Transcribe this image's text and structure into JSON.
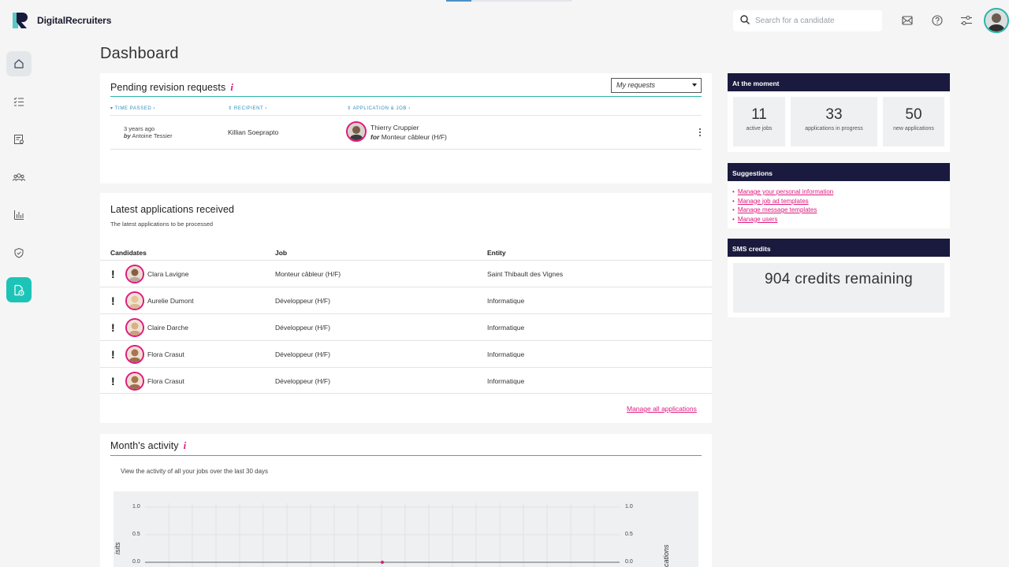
{
  "app": {
    "name": "DigitalRecruiters"
  },
  "search": {
    "placeholder": "Search for a candidate"
  },
  "page": {
    "title": "Dashboard"
  },
  "pending": {
    "title": "Pending revision requests",
    "info": "i",
    "filter_value": "My requests",
    "columns": [
      "TIME PASSED",
      "RECIPIENT",
      "APPLICATION & JOB"
    ],
    "rows": [
      {
        "time": "3 years ago",
        "by_label": "by",
        "by_name": "Antoine Tessier",
        "recipient": "Killian Soeprapto",
        "candidate": "Thierry Cruppier",
        "for_label": "for",
        "job": "Monteur câbleur (H/F)"
      }
    ]
  },
  "latest": {
    "title": "Latest applications received",
    "subtitle": "The latest applications to be processed",
    "columns": [
      "Candidates",
      "Job",
      "Entity"
    ],
    "rows": [
      {
        "flag": "!",
        "name": "Clara Lavigne",
        "job": "Monteur câbleur (H/F)",
        "entity": "Saint Thibault des Vignes"
      },
      {
        "flag": "!",
        "name": "Aurelie Dumont",
        "job": "Développeur (H/F)",
        "entity": "Informatique"
      },
      {
        "flag": "!",
        "name": "Claire Darche",
        "job": "Développeur (H/F)",
        "entity": "Informatique"
      },
      {
        "flag": "!",
        "name": "Flora Crasut",
        "job": "Développeur (H/F)",
        "entity": "Informatique"
      },
      {
        "flag": "!",
        "name": "Flora Crasut",
        "job": "Développeur (H/F)",
        "entity": "Informatique"
      }
    ],
    "manage_link": "Manage all applications"
  },
  "activity": {
    "title": "Month's activity",
    "info": "i",
    "subtitle": "View the activity of all your jobs over the last 30 days",
    "left_axis_label": "isits",
    "right_axis_label": "cations",
    "y_ticks": [
      "1.0",
      "0.5",
      "0.0"
    ]
  },
  "moment": {
    "title": "At the moment",
    "stats": [
      {
        "value": "11",
        "label": "active jobs"
      },
      {
        "value": "33",
        "label": "applications in progress"
      },
      {
        "value": "50",
        "label": "new applications"
      }
    ]
  },
  "suggestions": {
    "title": "Suggestions",
    "items": [
      "Manage your personal information",
      "Manage job ad templates",
      "Manage message templates",
      "Manage users"
    ]
  },
  "sms": {
    "title": "SMS credits",
    "text": "904 credits remaining"
  },
  "colors": {
    "accent": "#1cc4b7",
    "pink": "#e0197d",
    "navy": "#1a1a3e"
  }
}
